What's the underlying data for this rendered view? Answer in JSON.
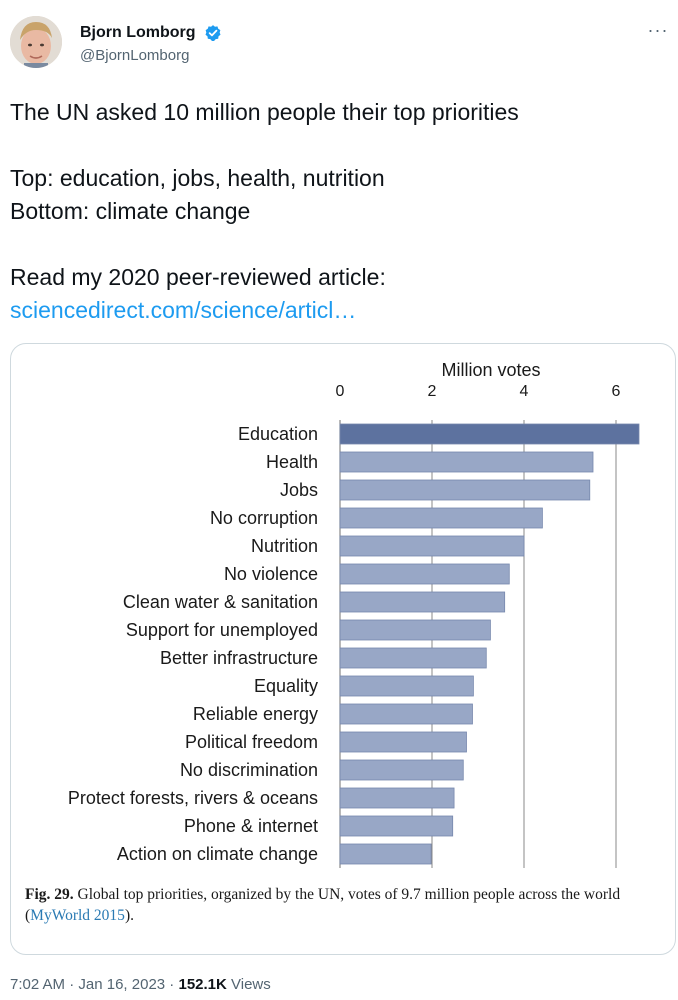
{
  "author": {
    "name": "Bjorn Lomborg",
    "handle": "@BjornLomborg",
    "verified": true,
    "verified_icon": "verified-badge-icon",
    "more_icon": "more-options-icon"
  },
  "tweet": {
    "line1": "The UN asked 10 million people their top priorities",
    "line2": "Top: education, jobs, health, nutrition",
    "line3": "Bottom: climate change",
    "line4": "Read my 2020 peer-reviewed article:",
    "link": "sciencedirect.com/science/articl…"
  },
  "chart_data": {
    "type": "bar",
    "orientation": "horizontal",
    "xlabel": "Million votes",
    "xlim": [
      0,
      6.5
    ],
    "xticks": [
      0,
      2,
      4,
      6
    ],
    "grid": true,
    "categories": [
      "Education",
      "Health",
      "Jobs",
      "No corruption",
      "Nutrition",
      "No violence",
      "Clean water & sanitation",
      "Support for unemployed",
      "Better infrastructure",
      "Equality",
      "Reliable energy",
      "Political freedom",
      "No discrimination",
      "Protect forests, rivers & oceans",
      "Phone & internet",
      "Action on climate change"
    ],
    "values": [
      6.5,
      5.5,
      5.43,
      4.4,
      4.0,
      3.68,
      3.58,
      3.27,
      3.18,
      2.9,
      2.88,
      2.75,
      2.68,
      2.48,
      2.45,
      1.98
    ],
    "colors": {
      "highlight": "#5d729f",
      "bar": "#98a7c6",
      "bar_edge": "#7788ad",
      "grid": "#888888"
    }
  },
  "caption": {
    "fig": "Fig. 29.",
    "text": " Global top priorities, organized by the UN, votes of 9.7 million people across the world (",
    "ref": "MyWorld 2015",
    "end": ")."
  },
  "meta": {
    "time": "7:02 AM",
    "sep1": " · ",
    "date": "Jan 16, 2023",
    "sep2": " · ",
    "views_count": "152.1K",
    "views_label": " Views"
  }
}
